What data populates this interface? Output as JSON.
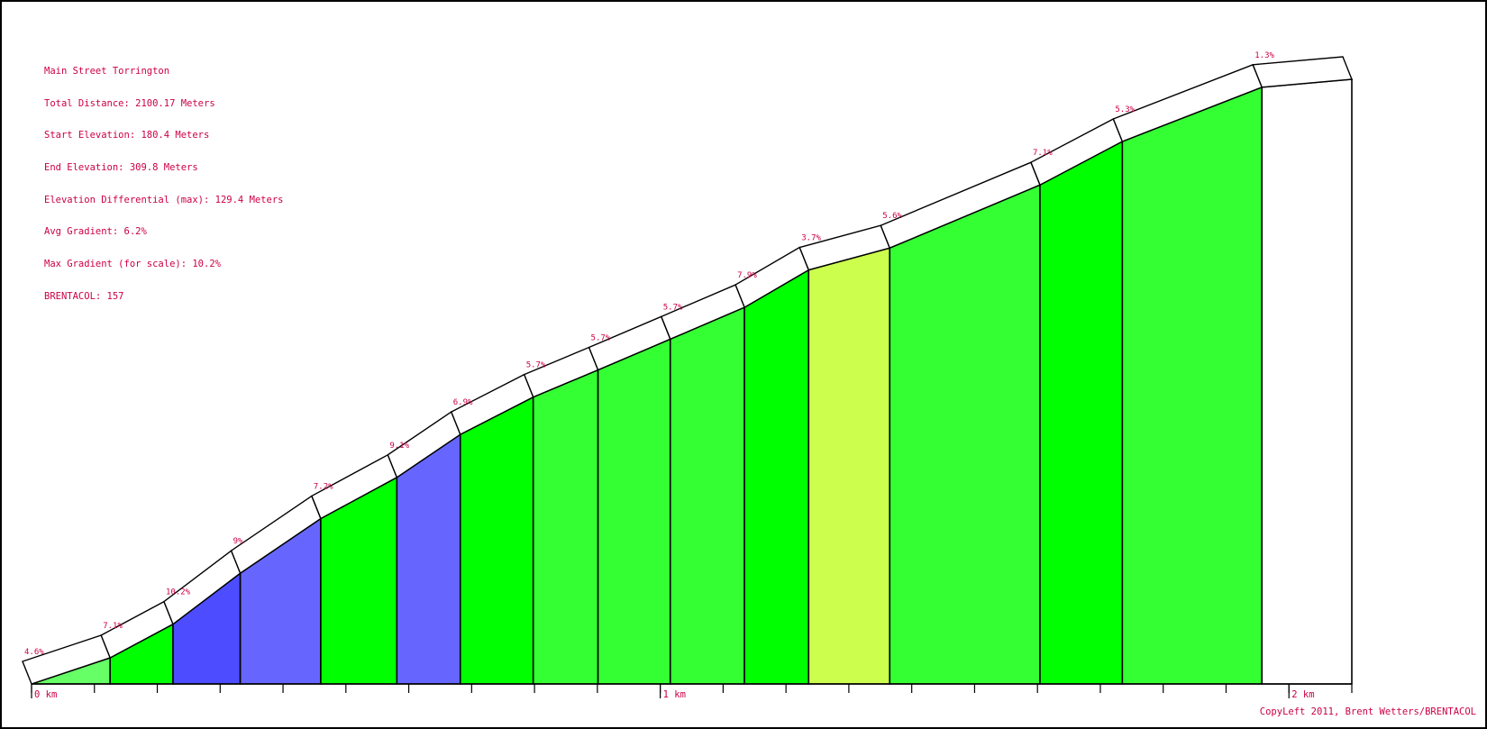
{
  "info": {
    "name": "Main Street Torrington",
    "total_distance": "Total Distance: 2100.17 Meters",
    "start_elevation": "Start Elevation: 180.4 Meters",
    "end_elevation": "End Elevation: 309.8 Meters",
    "elevation_differential": "Elevation Differential (max): 129.4 Meters",
    "avg_gradient": "Avg Gradient: 6.2%",
    "max_gradient": "Max Gradient (for scale): 10.2%",
    "brentacol": "BRENTACOL: 157"
  },
  "copyleft": "CopyLeft 2011, Brent Wetters/BRENTACOL",
  "chart_data": {
    "type": "area",
    "title": "Main Street Torrington",
    "x_unit": "km",
    "y_unit": "m",
    "xlim": [
      0,
      2.1
    ],
    "ylim": [
      180.4,
      309.8
    ],
    "x_tick_labels": [
      {
        "x": 0,
        "label": "0 km"
      },
      {
        "x": 1,
        "label": "1 km"
      },
      {
        "x": 2,
        "label": "2 km"
      }
    ],
    "minor_tick_step_km": 0.1,
    "segments": [
      {
        "x0": 0.0,
        "x1": 0.125,
        "label": "4.6%",
        "color": "#66ff66"
      },
      {
        "x0": 0.125,
        "x1": 0.225,
        "label": "7.1%",
        "color": "#00ff00"
      },
      {
        "x0": 0.225,
        "x1": 0.332,
        "label": "10.2%",
        "color": "#4d4dff"
      },
      {
        "x0": 0.332,
        "x1": 0.46,
        "label": "9%",
        "color": "#6666ff"
      },
      {
        "x0": 0.46,
        "x1": 0.581,
        "label": "7.2%",
        "color": "#00ff00"
      },
      {
        "x0": 0.581,
        "x1": 0.682,
        "label": "9.1%",
        "color": "#6666ff"
      },
      {
        "x0": 0.682,
        "x1": 0.798,
        "label": "6.9%",
        "color": "#00ff00"
      },
      {
        "x0": 0.798,
        "x1": 0.901,
        "label": "5.7%",
        "color": "#33ff33"
      },
      {
        "x0": 0.901,
        "x1": 1.016,
        "label": "5.7%",
        "color": "#33ff33"
      },
      {
        "x0": 1.016,
        "x1": 1.134,
        "label": "5.7%",
        "color": "#33ff33"
      },
      {
        "x0": 1.134,
        "x1": 1.236,
        "label": "7.9%",
        "color": "#00ff00"
      },
      {
        "x0": 1.236,
        "x1": 1.365,
        "label": "3.7%",
        "color": "#ccff4d"
      },
      {
        "x0": 1.365,
        "x1": 1.604,
        "label": "5.6%",
        "color": "#33ff33"
      },
      {
        "x0": 1.604,
        "x1": 1.735,
        "label": "7.1%",
        "color": "#00ff00"
      },
      {
        "x0": 1.735,
        "x1": 1.957,
        "label": "5.3%",
        "color": "#33ff33"
      },
      {
        "x0": 1.957,
        "x1": 2.1,
        "label": "1.3%",
        "color": "#ffffff"
      }
    ],
    "elevation_profile": {
      "x": [
        0.0,
        0.125,
        0.225,
        0.332,
        0.46,
        0.581,
        0.682,
        0.798,
        0.901,
        1.016,
        1.134,
        1.236,
        1.365,
        1.604,
        1.735,
        1.957,
        2.1
      ],
      "y": [
        180.4,
        186.0,
        193.2,
        204.1,
        215.8,
        224.6,
        233.8,
        241.8,
        247.6,
        254.2,
        261.0,
        269.0,
        273.7,
        287.2,
        296.5,
        308.1,
        309.8
      ]
    }
  }
}
